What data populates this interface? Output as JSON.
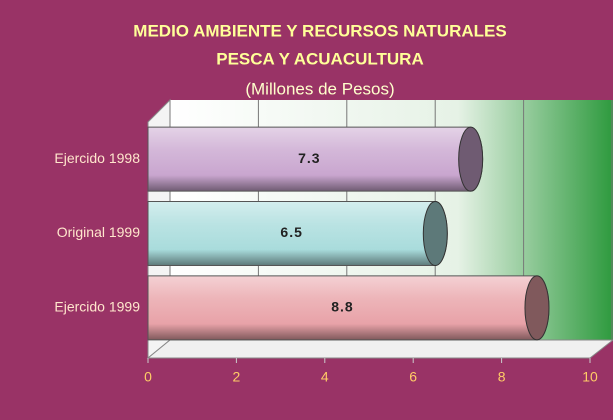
{
  "chart_data": {
    "type": "bar",
    "orientation": "horizontal",
    "title": "MEDIO AMBIENTE Y RECURSOS NATURALES",
    "subtitle": "PESCA Y ACUACULTURA",
    "units": "(Millones de Pesos)",
    "categories": [
      "Ejercido 1998",
      "Original 1999",
      "Ejercido 1999"
    ],
    "values": [
      7.3,
      6.5,
      8.8
    ],
    "colors": [
      "#c9a6cf",
      "#a9dcdc",
      "#e8a2a8"
    ],
    "xlim": [
      0,
      10
    ],
    "xticks": [
      0,
      2,
      4,
      6,
      8,
      10
    ],
    "grid": true
  }
}
